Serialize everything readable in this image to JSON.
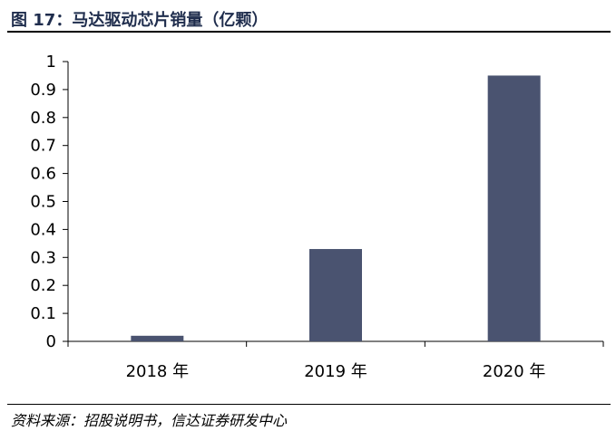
{
  "figure": {
    "title": "图 17：马达驱动芯片销量（亿颗）",
    "source": "资料来源：招股说明书，信达证券研发中心"
  },
  "colors": {
    "bar": "#4a5370",
    "axis": "#000000",
    "title": "#1f2d4d"
  },
  "chart_data": {
    "type": "bar",
    "categories": [
      "2018 年",
      "2019 年",
      "2020 年"
    ],
    "values": [
      0.02,
      0.33,
      0.95
    ],
    "ylim": [
      0,
      1
    ],
    "yticks": [
      "0",
      "0.1",
      "0.2",
      "0.3",
      "0.4",
      "0.5",
      "0.6",
      "0.7",
      "0.8",
      "0.9",
      "1"
    ],
    "grid": false,
    "legend": "none"
  }
}
